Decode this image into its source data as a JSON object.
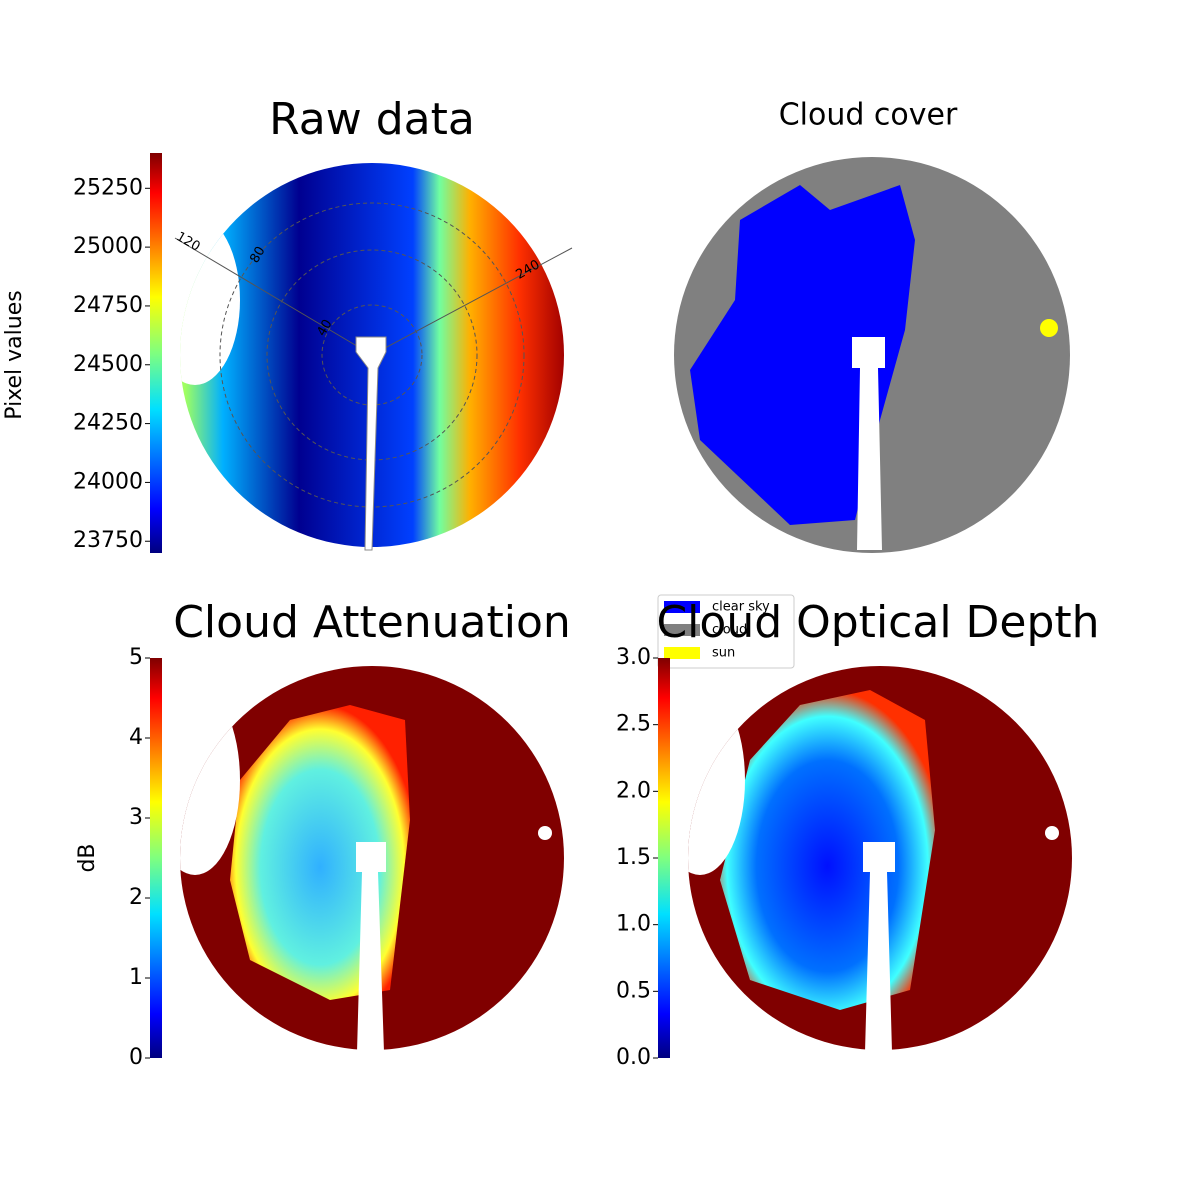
{
  "chart_data": [
    {
      "type": "image",
      "title": "Raw data",
      "colorbar_label": "Pixel values",
      "colormap": "jet",
      "ylim": [
        23700,
        25400
      ],
      "yticks": [
        23750,
        24000,
        24250,
        24500,
        24750,
        25000,
        25250
      ],
      "annotations": [
        "120",
        "80",
        "240",
        "40"
      ]
    },
    {
      "type": "image",
      "title": "Cloud cover",
      "legend": [
        {
          "name": "clear sky",
          "color": "#0000ff"
        },
        {
          "name": "cloud",
          "color": "#808080"
        },
        {
          "name": "sun",
          "color": "#ffff00"
        }
      ]
    },
    {
      "type": "image",
      "title": "Cloud Attenuation",
      "colorbar_label": "dB",
      "colormap": "jet",
      "ylim": [
        0,
        5
      ],
      "yticks": [
        0,
        1,
        2,
        3,
        4,
        5
      ]
    },
    {
      "type": "image",
      "title": "Cloud Optical Depth",
      "colormap": "jet",
      "ylim": [
        0,
        3
      ],
      "yticks": [
        {
          "value": 0,
          "label": "0.0"
        },
        0.5,
        {
          "value": 1,
          "label": "1.0"
        },
        1.5,
        {
          "value": 2,
          "label": "2.0"
        },
        2.5,
        {
          "value": 3,
          "label": "3.0"
        }
      ]
    }
  ]
}
